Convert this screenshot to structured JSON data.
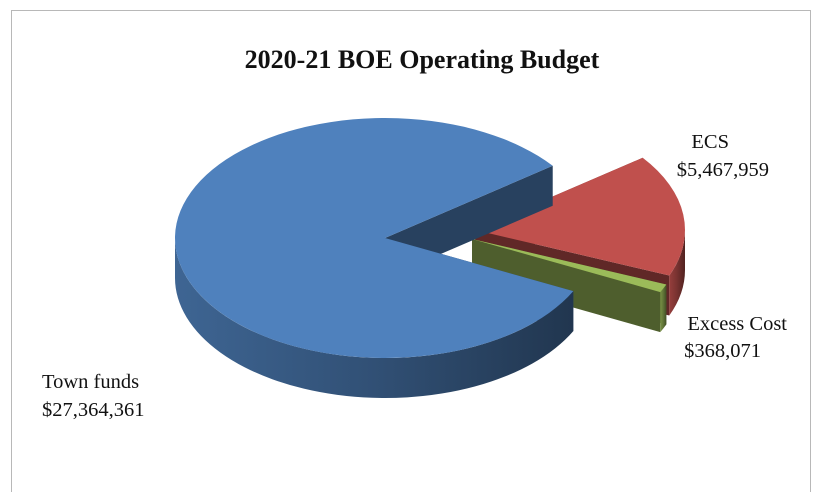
{
  "chart_data": {
    "type": "pie",
    "style": "3d-exploded",
    "title": "2020-21 BOE Operating Budget",
    "categories": [
      "Town funds",
      "ECS",
      "Excess Cost"
    ],
    "values": [
      27364361,
      5467959,
      368071
    ],
    "value_labels": [
      "$27,364,361",
      "$5,467,959",
      "$368,071"
    ],
    "colors": [
      "#4f81bd",
      "#c0504d",
      "#9bbb59"
    ],
    "legend": "none"
  }
}
